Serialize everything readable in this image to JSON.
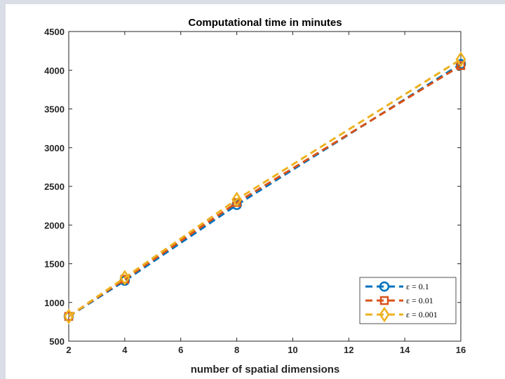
{
  "chart_data": {
    "type": "line",
    "title": "Computational time in minutes",
    "xlabel": "number of spatial dimensions",
    "ylabel": "",
    "x": [
      2,
      4,
      8,
      16
    ],
    "xlim": [
      2,
      16
    ],
    "ylim": [
      500,
      4500
    ],
    "xticks": [
      2,
      4,
      6,
      8,
      10,
      12,
      14,
      16
    ],
    "yticks": [
      500,
      1000,
      1500,
      2000,
      2500,
      3000,
      3500,
      4000,
      4500
    ],
    "grid": false,
    "legend_position": "bottom-right",
    "series": [
      {
        "name": "ε = 0.1",
        "marker": "circle",
        "line_style": "dashed",
        "color": "#0072BD",
        "values": [
          820,
          1280,
          2260,
          4080
        ]
      },
      {
        "name": "ε = 0.01",
        "marker": "square",
        "line_style": "dashed",
        "color": "#D95319",
        "values": [
          820,
          1300,
          2290,
          4060
        ]
      },
      {
        "name": "ε = 0.001",
        "marker": "diamond",
        "line_style": "dashed",
        "color": "#EDB120",
        "values": [
          820,
          1320,
          2330,
          4140
        ]
      }
    ]
  }
}
